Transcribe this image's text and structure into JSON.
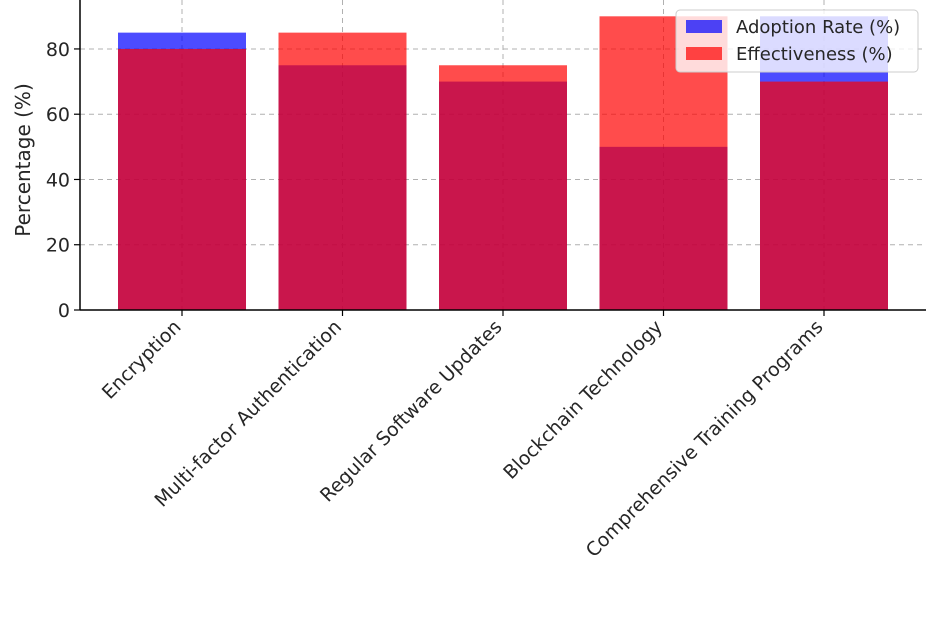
{
  "chart_data": {
    "type": "bar",
    "title": "",
    "xlabel": "",
    "ylabel": "Percentage (%)",
    "categories": [
      "Encryption",
      "Multi-factor Authentication",
      "Regular Software Updates",
      "Blockchain Technology",
      "Comprehensive Training Programs"
    ],
    "series": [
      {
        "name": "Adoption Rate (%)",
        "values": [
          85,
          75,
          70,
          50,
          90
        ],
        "color": "#0000ff",
        "opacity": 0.7
      },
      {
        "name": "Effectiveness (%)",
        "values": [
          80,
          85,
          75,
          90,
          70
        ],
        "color": "#ff0000",
        "opacity": 0.7
      }
    ],
    "ylim": [
      0,
      95
    ],
    "yticks": [
      0,
      20,
      40,
      60,
      80
    ],
    "grid": true,
    "legend_position": "top-right",
    "overlapping_bars": true
  }
}
